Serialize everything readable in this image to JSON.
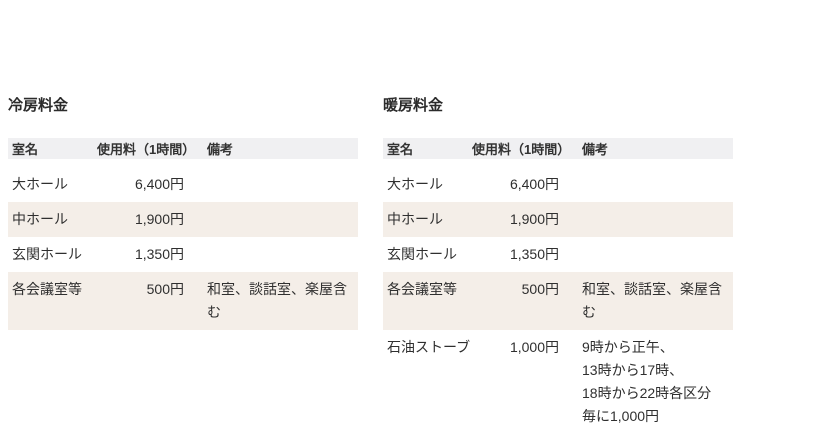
{
  "colors": {
    "page_background": "#ffffff",
    "header_row_background": "#f0f0f2",
    "stripe_row_background": "#f4eee8",
    "text": "#2f2f2f"
  },
  "tables": [
    {
      "title": "冷房料金",
      "columns": [
        "室名",
        "使用料（1時間）",
        "備考"
      ],
      "rows": [
        {
          "room": "大ホール",
          "fee": "6,400円",
          "note": ""
        },
        {
          "room": "中ホール",
          "fee": "1,900円",
          "note": ""
        },
        {
          "room": "玄関ホール",
          "fee": "1,350円",
          "note": ""
        },
        {
          "room": "各会議室等",
          "fee": "500円",
          "note": "和室、談話室、楽屋含む"
        }
      ]
    },
    {
      "title": "暖房料金",
      "columns": [
        "室名",
        "使用料（1時間）",
        "備考"
      ],
      "rows": [
        {
          "room": "大ホール",
          "fee": "6,400円",
          "note": ""
        },
        {
          "room": "中ホール",
          "fee": "1,900円",
          "note": ""
        },
        {
          "room": "玄関ホール",
          "fee": "1,350円",
          "note": ""
        },
        {
          "room": "各会議室等",
          "fee": "500円",
          "note": "和室、談話室、楽屋含む"
        },
        {
          "room": "石油ストーブ",
          "fee": "1,000円",
          "note": [
            "9時から正午、",
            "13時から17時、",
            "18時から22時各区分",
            "毎に1,000円"
          ]
        }
      ]
    }
  ]
}
